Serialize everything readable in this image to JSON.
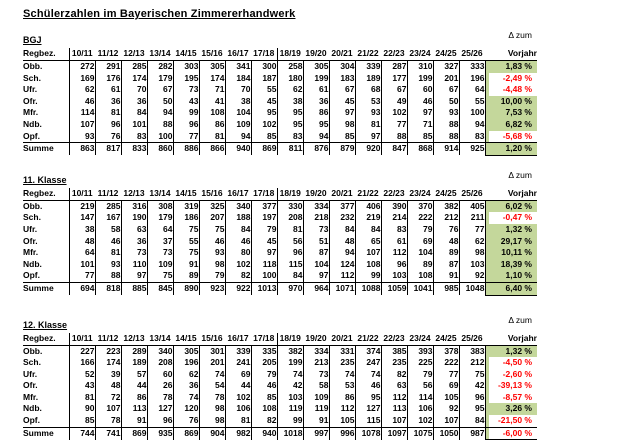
{
  "page": {
    "title": "Schülerzahlen im Bayerischen Zimmererhandwerk"
  },
  "columns": {
    "row_header": "Regbez.",
    "years": [
      "10/11",
      "11/12",
      "12/13",
      "13/14",
      "14/15",
      "15/16",
      "16/17",
      "17/18",
      "18/19",
      "19/20",
      "20/21",
      "21/22",
      "22/23",
      "23/24",
      "24/25",
      "25/26"
    ],
    "delta_header_line1": "Δ zum",
    "delta_header_line2": "Vorjahr"
  },
  "colors": {
    "positive_bg": "#c4d79b",
    "negative_text": "#ff0000",
    "border": "#000000"
  },
  "tables": [
    {
      "label": "BGJ",
      "rows": [
        {
          "name": "Obb.",
          "values": [
            272,
            291,
            285,
            282,
            303,
            305,
            341,
            300,
            258,
            305,
            304,
            339,
            287,
            310,
            327,
            333
          ],
          "delta": "1,83 %",
          "trend": "positive"
        },
        {
          "name": "Sch.",
          "values": [
            169,
            176,
            174,
            179,
            195,
            174,
            184,
            187,
            180,
            199,
            183,
            189,
            177,
            199,
            201,
            196
          ],
          "delta": "-2,49 %",
          "trend": "negative"
        },
        {
          "name": "Ufr.",
          "values": [
            62,
            61,
            70,
            67,
            73,
            71,
            70,
            55,
            62,
            61,
            67,
            68,
            67,
            60,
            67,
            64
          ],
          "delta": "-4,48 %",
          "trend": "negative"
        },
        {
          "name": "Ofr.",
          "values": [
            46,
            36,
            36,
            50,
            43,
            41,
            38,
            45,
            38,
            36,
            45,
            53,
            49,
            46,
            50,
            55
          ],
          "delta": "10,00 %",
          "trend": "positive"
        },
        {
          "name": "Mfr.",
          "values": [
            114,
            81,
            84,
            94,
            99,
            108,
            104,
            95,
            95,
            86,
            97,
            93,
            102,
            97,
            93,
            100
          ],
          "delta": "7,53 %",
          "trend": "positive"
        },
        {
          "name": "Ndb.",
          "values": [
            107,
            96,
            101,
            88,
            96,
            86,
            109,
            102,
            95,
            95,
            98,
            81,
            77,
            71,
            88,
            94
          ],
          "delta": "6,82 %",
          "trend": "positive"
        },
        {
          "name": "Opf.",
          "values": [
            93,
            76,
            83,
            100,
            77,
            81,
            94,
            85,
            83,
            94,
            85,
            97,
            88,
            85,
            88,
            83
          ],
          "delta": "-5,68 %",
          "trend": "negative"
        },
        {
          "name": "Summe",
          "values": [
            863,
            817,
            833,
            860,
            886,
            866,
            940,
            869,
            811,
            876,
            879,
            920,
            847,
            868,
            914,
            925
          ],
          "delta": "1,20 %",
          "trend": "positive",
          "total": true
        }
      ]
    },
    {
      "label": "11. Klasse",
      "rows": [
        {
          "name": "Obb.",
          "values": [
            219,
            285,
            316,
            308,
            319,
            325,
            340,
            377,
            330,
            334,
            377,
            406,
            390,
            370,
            382,
            405
          ],
          "delta": "6,02 %",
          "trend": "positive"
        },
        {
          "name": "Sch.",
          "values": [
            147,
            167,
            190,
            179,
            186,
            207,
            188,
            197,
            208,
            218,
            232,
            219,
            214,
            222,
            212,
            211
          ],
          "delta": "-0,47 %",
          "trend": "negative"
        },
        {
          "name": "Ufr.",
          "values": [
            38,
            58,
            63,
            64,
            75,
            75,
            84,
            79,
            81,
            73,
            84,
            84,
            83,
            79,
            76,
            77
          ],
          "delta": "1,32 %",
          "trend": "positive"
        },
        {
          "name": "Ofr.",
          "values": [
            48,
            46,
            36,
            37,
            55,
            46,
            46,
            45,
            56,
            51,
            48,
            65,
            61,
            69,
            48,
            62
          ],
          "delta": "29,17 %",
          "trend": "positive"
        },
        {
          "name": "Mfr.",
          "values": [
            64,
            81,
            73,
            73,
            75,
            93,
            80,
            97,
            96,
            87,
            94,
            107,
            112,
            104,
            89,
            98
          ],
          "delta": "10,11 %",
          "trend": "positive"
        },
        {
          "name": "Ndb.",
          "values": [
            101,
            93,
            110,
            109,
            91,
            98,
            102,
            118,
            115,
            104,
            124,
            108,
            96,
            89,
            87,
            103
          ],
          "delta": "18,39 %",
          "trend": "positive"
        },
        {
          "name": "Opf.",
          "values": [
            77,
            88,
            97,
            75,
            89,
            79,
            82,
            100,
            84,
            97,
            112,
            99,
            103,
            108,
            91,
            92
          ],
          "delta": "1,10 %",
          "trend": "positive"
        },
        {
          "name": "Summe",
          "values": [
            694,
            818,
            885,
            845,
            890,
            923,
            922,
            1013,
            970,
            964,
            1071,
            1088,
            1059,
            1041,
            985,
            1048
          ],
          "delta": "6,40 %",
          "trend": "positive",
          "total": true
        }
      ]
    },
    {
      "label": "12. Klasse",
      "rows": [
        {
          "name": "Obb.",
          "values": [
            227,
            223,
            289,
            340,
            305,
            301,
            339,
            335,
            382,
            334,
            331,
            374,
            385,
            393,
            378,
            383
          ],
          "delta": "1,32 %",
          "trend": "positive"
        },
        {
          "name": "Sch.",
          "values": [
            166,
            174,
            189,
            208,
            196,
            201,
            241,
            205,
            199,
            213,
            235,
            247,
            235,
            225,
            222,
            212
          ],
          "delta": "-4,50 %",
          "trend": "negative"
        },
        {
          "name": "Ufr.",
          "values": [
            52,
            39,
            57,
            60,
            62,
            74,
            69,
            79,
            74,
            73,
            74,
            74,
            82,
            79,
            77,
            75
          ],
          "delta": "-2,60 %",
          "trend": "negative"
        },
        {
          "name": "Ofr.",
          "values": [
            43,
            48,
            44,
            26,
            36,
            54,
            44,
            46,
            42,
            58,
            53,
            46,
            63,
            56,
            69,
            42
          ],
          "delta": "-39,13 %",
          "trend": "negative"
        },
        {
          "name": "Mfr.",
          "values": [
            81,
            72,
            86,
            78,
            74,
            78,
            102,
            85,
            103,
            109,
            86,
            95,
            112,
            114,
            105,
            96
          ],
          "delta": "-8,57 %",
          "trend": "negative"
        },
        {
          "name": "Ndb.",
          "values": [
            90,
            107,
            113,
            127,
            120,
            98,
            106,
            108,
            119,
            119,
            112,
            127,
            113,
            106,
            92,
            95
          ],
          "delta": "3,26 %",
          "trend": "positive"
        },
        {
          "name": "Opf.",
          "values": [
            85,
            78,
            91,
            96,
            76,
            98,
            81,
            82,
            99,
            91,
            105,
            115,
            107,
            102,
            107,
            84
          ],
          "delta": "-21,50 %",
          "trend": "negative"
        },
        {
          "name": "Summe",
          "values": [
            744,
            741,
            869,
            935,
            869,
            904,
            982,
            940,
            1018,
            997,
            996,
            1078,
            1097,
            1075,
            1050,
            987
          ],
          "delta": "-6,00 %",
          "trend": "negative",
          "total": true
        }
      ]
    }
  ]
}
